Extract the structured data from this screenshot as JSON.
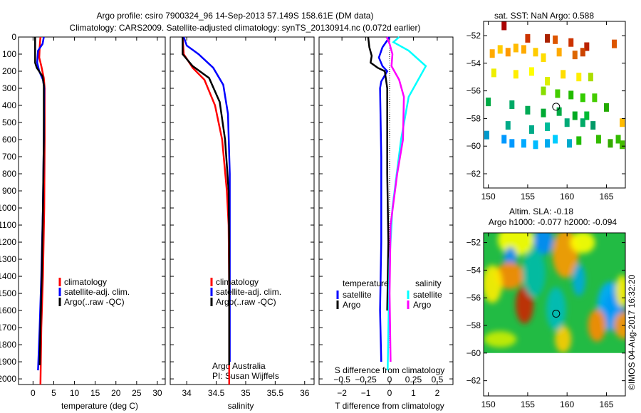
{
  "titles": {
    "line1": "Argo profile: csiro 7900324_96 14-Sep-2013 57.149S 158.61E (DM data)",
    "line2": "Climatology: CARS2009. Satellite-adjusted climatology: synTS_20130914.nc (0.072d earlier)"
  },
  "colors": {
    "climatology": "#ff0000",
    "satellite": "#0000ff",
    "argo": "#000000",
    "sal_satellite": "#00ffff",
    "sal_argo": "#ff00ff"
  },
  "chart_data": [
    {
      "type": "line",
      "name": "temperature",
      "xlabel": "temperature (deg C)",
      "xlim": [
        -3.5,
        31.9
      ],
      "ylim": [
        0,
        2033
      ],
      "xticks": [
        0,
        5,
        10,
        15,
        20,
        25,
        30
      ],
      "yticks": [
        0,
        100,
        200,
        300,
        400,
        500,
        600,
        700,
        800,
        900,
        1000,
        1100,
        1200,
        1300,
        1400,
        1500,
        1600,
        1700,
        1800,
        1900,
        2000
      ],
      "legend": [
        "climatology",
        "satellite-adj. clim.",
        "Argo(..raw -QC)"
      ],
      "series": [
        {
          "name": "climatology",
          "color": "#ff0000",
          "points": [
            [
              1.8,
              0
            ],
            [
              1.6,
              60
            ],
            [
              1.5,
              120
            ],
            [
              2.0,
              170
            ],
            [
              2.6,
              240
            ],
            [
              2.8,
              300
            ],
            [
              2.8,
              600
            ],
            [
              2.7,
              1000
            ],
            [
              2.4,
              1400
            ],
            [
              2.0,
              1700
            ],
            [
              1.8,
              2033
            ]
          ]
        },
        {
          "name": "satellite-adj. clim.",
          "color": "#0000ff",
          "points": [
            [
              2.6,
              0
            ],
            [
              2.3,
              40
            ],
            [
              1.2,
              80
            ],
            [
              1.0,
              150
            ],
            [
              1.5,
              200
            ],
            [
              2.4,
              250
            ],
            [
              2.7,
              300
            ],
            [
              2.6,
              600
            ],
            [
              2.4,
              1000
            ],
            [
              2.0,
              1400
            ],
            [
              1.6,
              1700
            ],
            [
              1.2,
              1950
            ]
          ]
        },
        {
          "name": "Argo(..raw -QC)",
          "color": "#000000",
          "points": [
            [
              0.5,
              0
            ],
            [
              0.5,
              150
            ],
            [
              0.9,
              180
            ],
            [
              2.3,
              230
            ],
            [
              2.6,
              280
            ],
            [
              2.6,
              600
            ],
            [
              2.4,
              1000
            ],
            [
              2.1,
              1400
            ],
            [
              1.8,
              1700
            ],
            [
              1.6,
              1920
            ]
          ]
        }
      ]
    },
    {
      "type": "line",
      "name": "salinity",
      "xlabel": "salinity",
      "xlim": [
        33.72,
        36.16
      ],
      "ylim": [
        0,
        2033
      ],
      "xticks": [
        34,
        34.5,
        35,
        35.5,
        36
      ],
      "legend": [
        "climatology",
        "satellite-adj. clim.",
        "Argo(..raw -QC)"
      ],
      "annotation": [
        "Argo Australia",
        "PI: Susan Wijffels"
      ],
      "series": [
        {
          "name": "climatology",
          "color": "#ff0000",
          "points": [
            [
              33.93,
              0
            ],
            [
              33.95,
              100
            ],
            [
              34.1,
              180
            ],
            [
              34.3,
              250
            ],
            [
              34.48,
              400
            ],
            [
              34.6,
              600
            ],
            [
              34.68,
              900
            ],
            [
              34.71,
              1100
            ],
            [
              34.72,
              1500
            ],
            [
              34.72,
              2033
            ]
          ]
        },
        {
          "name": "satellite-adj. clim.",
          "color": "#0000ff",
          "points": [
            [
              33.95,
              0
            ],
            [
              34.0,
              50
            ],
            [
              34.2,
              100
            ],
            [
              34.45,
              180
            ],
            [
              34.62,
              280
            ],
            [
              34.7,
              450
            ],
            [
              34.73,
              800
            ],
            [
              34.73,
              1900
            ]
          ]
        },
        {
          "name": "Argo(..raw -QC)",
          "color": "#000000",
          "points": [
            [
              33.93,
              0
            ],
            [
              33.93,
              100
            ],
            [
              34.1,
              170
            ],
            [
              34.38,
              240
            ],
            [
              34.56,
              380
            ],
            [
              34.65,
              600
            ],
            [
              34.71,
              900
            ],
            [
              34.72,
              1200
            ],
            [
              34.72,
              1920
            ]
          ]
        }
      ]
    },
    {
      "type": "line",
      "name": "difference",
      "xlabel": "T difference from climatology",
      "x2label": "S difference from climatology",
      "xlim": [
        -2.96,
        2.66
      ],
      "x2lim": [
        -0.74,
        0.665
      ],
      "xticks": [
        -2,
        -1,
        0,
        1,
        2
      ],
      "x2ticks": [
        "-0.5",
        "-0.25",
        "0",
        "0.25",
        "0.5"
      ],
      "x2tick_values": [
        -0.5,
        -0.25,
        0,
        0.25,
        0.5
      ],
      "legend": {
        "temperature": "temperature",
        "salinity": "salinity",
        "satellite": "satellite",
        "argo": "Argo"
      },
      "series": [
        {
          "name": "T satellite",
          "axis": "T",
          "color": "#0000ff",
          "points": [
            [
              0,
              0
            ],
            [
              -0.3,
              60
            ],
            [
              -0.45,
              120
            ],
            [
              -0.3,
              170
            ],
            [
              -0.1,
              200
            ],
            [
              -0.35,
              260
            ],
            [
              -0.4,
              300
            ],
            [
              -0.35,
              700
            ],
            [
              -0.35,
              1200
            ],
            [
              -0.4,
              1600
            ],
            [
              -0.35,
              1900
            ]
          ]
        },
        {
          "name": "T Argo",
          "axis": "T",
          "color": "#000000",
          "points": [
            [
              -0.9,
              0
            ],
            [
              -0.85,
              60
            ],
            [
              -0.75,
              110
            ],
            [
              -0.8,
              150
            ],
            [
              -0.5,
              180
            ],
            [
              -0.2,
              200
            ],
            [
              -0.1,
              300
            ],
            [
              -0.1,
              800
            ],
            [
              -0.05,
              1200
            ],
            [
              -0.1,
              1600
            ]
          ]
        },
        {
          "name": "S satellite",
          "axis": "S",
          "color": "#00ffff",
          "points": [
            [
              0.1,
              0
            ],
            [
              0.04,
              30
            ],
            [
              0.2,
              80
            ],
            [
              0.38,
              170
            ],
            [
              0.3,
              250
            ],
            [
              0.2,
              350
            ],
            [
              0.12,
              600
            ],
            [
              0.03,
              1000
            ],
            [
              0,
              1300
            ],
            [
              -0.02,
              1950
            ]
          ]
        },
        {
          "name": "S Argo",
          "axis": "S",
          "color": "#ff00ff",
          "points": [
            [
              -0.03,
              0
            ],
            [
              0,
              40
            ],
            [
              0.03,
              100
            ],
            [
              0.02,
              170
            ],
            [
              0.1,
              250
            ],
            [
              0.15,
              350
            ],
            [
              0.14,
              600
            ],
            [
              0.08,
              800
            ],
            [
              0.01,
              1100
            ],
            [
              0,
              1500
            ],
            [
              0.01,
              1900
            ]
          ]
        }
      ]
    },
    {
      "type": "heatmap",
      "name": "sst-map",
      "title": "sat. SST: NaN Argo: 0.588",
      "xlim": [
        149.4,
        167.4
      ],
      "ylim": [
        -63.03,
        -50.97
      ],
      "xticks": [
        150,
        155,
        160,
        165
      ],
      "yticks": [
        -52,
        -54,
        -56,
        -58,
        -60,
        -62
      ],
      "profile_position": [
        158.61,
        -57.149
      ],
      "cells": [
        [
          152,
          -51.3,
          "#aa0000"
        ],
        [
          155,
          -52.2,
          "#cc3300"
        ],
        [
          157.5,
          -52.2,
          "#aa2200"
        ],
        [
          158.5,
          -52.3,
          "#dd5500"
        ],
        [
          160.5,
          -52.5,
          "#cc3300"
        ],
        [
          162.5,
          -52.8,
          "#bb2200"
        ],
        [
          166,
          -52.6,
          "#dd5500"
        ],
        [
          150.5,
          -53.3,
          "#ffaa00"
        ],
        [
          151.5,
          -53,
          "#ffcc00"
        ],
        [
          152.5,
          -53.2,
          "#ff9900"
        ],
        [
          153.5,
          -52.9,
          "#ffbb00"
        ],
        [
          154.5,
          -53,
          "#ffaa00"
        ],
        [
          156,
          -53.2,
          "#ffcc00"
        ],
        [
          157,
          -53.6,
          "#ffdd00"
        ],
        [
          159,
          -53.2,
          "#ffaa00"
        ],
        [
          161,
          -53.4,
          "#dd6600"
        ],
        [
          162,
          -53.2,
          "#cc4400"
        ],
        [
          150.7,
          -54.7,
          "#eeee00"
        ],
        [
          153.5,
          -54.8,
          "#ffee00"
        ],
        [
          155.5,
          -54.6,
          "#ffff00"
        ],
        [
          157.5,
          -55.3,
          "#ddee00"
        ],
        [
          159.5,
          -54.8,
          "#ffdd00"
        ],
        [
          161.5,
          -55,
          "#ffee00"
        ],
        [
          163,
          -55,
          "#aadd00"
        ],
        [
          157,
          -56,
          "#88dd00"
        ],
        [
          158.8,
          -56.2,
          "#44cc00"
        ],
        [
          160.5,
          -56.3,
          "#22bb00"
        ],
        [
          162,
          -56.5,
          "#33cc00"
        ],
        [
          163.5,
          -56.5,
          "#44cc00"
        ],
        [
          150,
          -56.8,
          "#00aa44"
        ],
        [
          153,
          -57,
          "#00aa66"
        ],
        [
          155,
          -57.4,
          "#00aa55"
        ],
        [
          157,
          -57.6,
          "#00aa33"
        ],
        [
          159,
          -57.5,
          "#00aa44"
        ],
        [
          161,
          -57.8,
          "#00aa22"
        ],
        [
          162.5,
          -57.8,
          "#00bb33"
        ],
        [
          165,
          -57.2,
          "#22aa00"
        ],
        [
          152.5,
          -58.5,
          "#00aa88"
        ],
        [
          155.5,
          -58.8,
          "#00aa88"
        ],
        [
          157.5,
          -58.6,
          "#00bb99"
        ],
        [
          160,
          -58.3,
          "#00aa77"
        ],
        [
          162,
          -58.3,
          "#00aa66"
        ],
        [
          163.3,
          -58.5,
          "#009966"
        ],
        [
          167,
          -58.3,
          "#ffbb00"
        ],
        [
          149.8,
          -59.2,
          "#0099cc"
        ],
        [
          152,
          -59.5,
          "#0099ff"
        ],
        [
          153,
          -59.8,
          "#0099ff"
        ],
        [
          154.5,
          -59.8,
          "#00aaff"
        ],
        [
          156,
          -59.9,
          "#00bbff"
        ],
        [
          157.5,
          -59.8,
          "#00aaee"
        ],
        [
          158.5,
          -59.5,
          "#00ccff"
        ],
        [
          160.3,
          -59.8,
          "#00aacc"
        ],
        [
          161.5,
          -59.6,
          "#22bb00"
        ],
        [
          164,
          -59.5,
          "#33bb00"
        ],
        [
          165.5,
          -59.8,
          "#33aa00"
        ],
        [
          166.5,
          -59.5,
          "#33bb00"
        ],
        [
          167,
          -59.9,
          "#44bb00"
        ]
      ]
    },
    {
      "type": "heatmap",
      "name": "sla-map",
      "title": "Altim. SLA: -0.18",
      "subtitle": "Argo h1000: -0.077 h2000: -0.094",
      "xlim": [
        149.4,
        167.4
      ],
      "ylim": [
        -63.1,
        -51.3
      ],
      "data_lat_min": -60,
      "xticks": [
        150,
        155,
        160,
        165
      ],
      "yticks": [
        -52,
        -54,
        -56,
        -58,
        -60,
        -62
      ],
      "profile_position": [
        158.61,
        -57.149
      ],
      "blobs": [
        [
          153.5,
          -51.8,
          2.2,
          1.2,
          "#ffff00"
        ],
        [
          157,
          -51.9,
          1.2,
          1.0,
          "#0088ff"
        ],
        [
          159.8,
          -52.8,
          1.6,
          1.8,
          "#ff9900"
        ],
        [
          152.8,
          -53.1,
          0.8,
          0.8,
          "#0088ff"
        ],
        [
          152.7,
          -54.4,
          1.8,
          1.0,
          "#ff8800"
        ],
        [
          150.5,
          -55.0,
          1.2,
          1.4,
          "#ffee00"
        ],
        [
          154.6,
          -56.5,
          1.1,
          1.4,
          "#cc2200"
        ],
        [
          155.8,
          -54.2,
          1.4,
          1.8,
          "#00bbaa"
        ],
        [
          161.5,
          -54.7,
          0.8,
          1.2,
          "#00aadd"
        ],
        [
          166,
          -57.0,
          1.4,
          1.4,
          "#0000aa"
        ],
        [
          165.5,
          -56.6,
          1.6,
          1.8,
          "#00aaff"
        ],
        [
          163.8,
          -58.0,
          1.1,
          1.2,
          "#ff8800"
        ],
        [
          167.2,
          -58.0,
          1.2,
          1.0,
          "#ff9900"
        ],
        [
          167,
          -55.5,
          0.8,
          1.2,
          "#ffee00"
        ],
        [
          159.5,
          -59.0,
          1.0,
          1.0,
          "#ffcc00"
        ],
        [
          158.6,
          -56.8,
          1.2,
          1.6,
          "#00bbbb"
        ],
        [
          151.5,
          -59.0,
          2.0,
          0.6,
          "#ccee00"
        ],
        [
          162,
          -52.0,
          1.5,
          0.8,
          "#ffff00"
        ]
      ]
    }
  ],
  "watermark": "©IMOS 04-Aug-2017 16:32:20"
}
